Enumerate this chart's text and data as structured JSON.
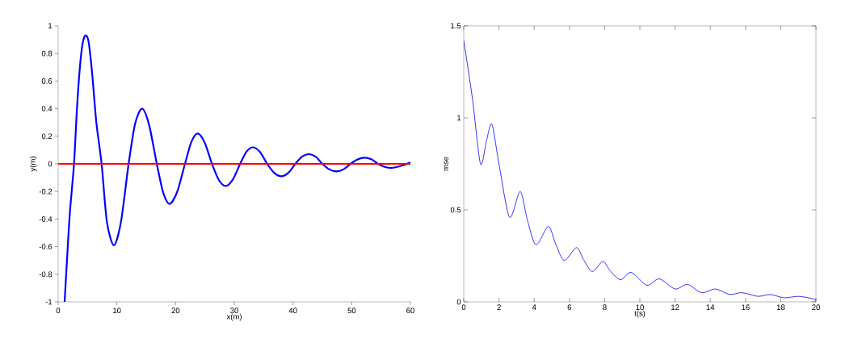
{
  "chart_data": [
    {
      "type": "line",
      "xlabel": "x(m)",
      "ylabel": "y(m)",
      "xlim": [
        0,
        60
      ],
      "ylim": [
        -1,
        1
      ],
      "xticks": [
        0,
        10,
        20,
        30,
        40,
        50,
        60
      ],
      "yticks": [
        -1,
        -0.8,
        -0.6,
        -0.4,
        -0.2,
        0,
        0.2,
        0.4,
        0.6,
        0.8,
        1
      ],
      "series": [
        {
          "color": "#0000ff",
          "x": [
            1.1,
            1.5,
            2,
            2.7,
            3.2,
            3.7,
            4.2,
            4.7,
            5.2,
            5.8,
            6.5,
            7.4,
            8.3,
            9.5,
            10.7,
            12,
            13.1,
            14.3,
            15.5,
            16.8,
            17.9,
            19.0,
            20.3,
            21.6,
            22.7,
            23.8,
            25,
            26.2,
            27.4,
            28.6,
            29.8,
            31,
            32.1,
            33.2,
            34.4,
            35.6,
            36.8,
            38,
            39.2,
            40.4,
            41.5,
            42.7,
            43.9,
            45,
            46.2,
            47.4,
            48.6,
            49.8,
            51,
            52.2,
            53.4,
            54.5,
            55.6,
            56.8,
            58.4,
            60
          ],
          "values": [
            -1,
            -0.7,
            -0.35,
            0,
            0.4,
            0.7,
            0.88,
            0.93,
            0.88,
            0.65,
            0.3,
            0,
            -0.42,
            -0.59,
            -0.42,
            0,
            0.29,
            0.4,
            0.28,
            0,
            -0.21,
            -0.29,
            -0.2,
            0,
            0.16,
            0.22,
            0.15,
            0,
            -0.12,
            -0.16,
            -0.11,
            0,
            0.09,
            0.12,
            0.085,
            0,
            -0.065,
            -0.09,
            -0.065,
            0,
            0.05,
            0.07,
            0.05,
            0,
            -0.04,
            -0.055,
            -0.04,
            0,
            0.032,
            0.045,
            0.032,
            0,
            -0.022,
            -0.03,
            -0.015,
            0.01
          ]
        }
      ],
      "ref_lines": [
        {
          "axis": "y",
          "value": 0,
          "color": "#ff0000"
        }
      ]
    },
    {
      "type": "line",
      "xlabel": "t(s)",
      "ylabel": "mse",
      "xlim": [
        0,
        20
      ],
      "ylim": [
        0,
        1.5
      ],
      "xticks": [
        0,
        2,
        4,
        6,
        8,
        10,
        12,
        14,
        16,
        18,
        20
      ],
      "yticks": [
        0,
        0.5,
        1,
        1.5
      ],
      "series": [
        {
          "color": "#0000ff",
          "x": [
            0,
            0.5,
            0.95,
            1.3,
            1.6,
            2.0,
            2.6,
            3.2,
            3.6,
            4.1,
            4.8,
            5.2,
            5.7,
            6.4,
            6.8,
            7.3,
            7.9,
            8.3,
            8.9,
            9.5,
            10.4,
            11.1,
            12,
            12.7,
            13.5,
            14.3,
            15.1,
            15.8,
            16.7,
            17.4,
            18.2,
            19,
            19.9,
            20
          ],
          "values": [
            1.42,
            1.1,
            0.75,
            0.88,
            0.965,
            0.75,
            0.46,
            0.6,
            0.45,
            0.31,
            0.41,
            0.32,
            0.225,
            0.295,
            0.23,
            0.165,
            0.22,
            0.17,
            0.12,
            0.16,
            0.09,
            0.125,
            0.07,
            0.095,
            0.05,
            0.07,
            0.04,
            0.05,
            0.03,
            0.04,
            0.022,
            0.03,
            0.015,
            0
          ]
        }
      ]
    }
  ]
}
